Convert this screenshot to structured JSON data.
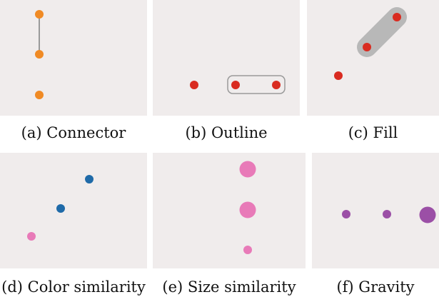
{
  "panels": [
    {
      "id": "a",
      "caption": "(a)  Connector",
      "technique": "connector"
    },
    {
      "id": "b",
      "caption": "(b)  Outline",
      "technique": "outline"
    },
    {
      "id": "c",
      "caption": "(c)  Fill",
      "technique": "fill"
    },
    {
      "id": "d",
      "caption": "(d)  Color similarity",
      "technique": "color-similarity"
    },
    {
      "id": "e",
      "caption": "(e)  Size similarity",
      "technique": "size-similarity"
    },
    {
      "id": "f",
      "caption": "(f)  Gravity",
      "technique": "gravity"
    }
  ],
  "colors": {
    "panel_background": "#f0ecec",
    "orange": "#f08a24",
    "red": "#d92b20",
    "blue": "#1f6aa8",
    "pink": "#e87ab8",
    "purple": "#9b4fa6",
    "connector_line": "#9a9a9a",
    "outline_stroke": "#9a9a9a",
    "fill_gray": "#b8b8b8"
  }
}
